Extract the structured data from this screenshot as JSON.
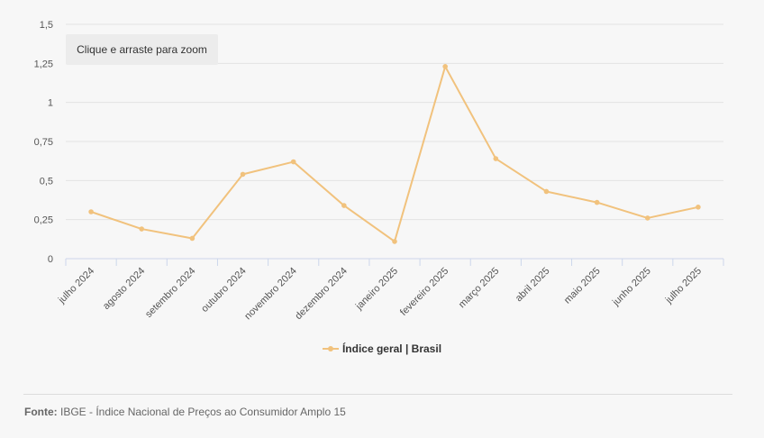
{
  "zoom_hint": "Clique e arraste para zoom",
  "legend": {
    "label": "Índice geral | Brasil"
  },
  "source": {
    "label": "Fonte:",
    "text": "IBGE - Índice Nacional de Preços ao Consumidor Amplo 15"
  },
  "chart_data": {
    "type": "line",
    "categories": [
      "julho 2024",
      "agosto 2024",
      "setembro 2024",
      "outubro 2024",
      "novembro 2024",
      "dezembro 2024",
      "janeiro 2025",
      "fevereiro 2025",
      "março 2025",
      "abril 2025",
      "maio 2025",
      "junho 2025",
      "julho 2025"
    ],
    "series": [
      {
        "name": "Índice geral | Brasil",
        "values": [
          0.3,
          0.19,
          0.13,
          0.54,
          0.62,
          0.34,
          0.11,
          1.23,
          0.64,
          0.43,
          0.36,
          0.26,
          0.33
        ],
        "color": "#f1c27d"
      }
    ],
    "y_ticks": [
      "0",
      "0,25",
      "0,5",
      "0,75",
      "1",
      "1,25",
      "1,5"
    ],
    "ylim": [
      0,
      1.5
    ],
    "grid": true,
    "legend_position": "bottom-center"
  }
}
